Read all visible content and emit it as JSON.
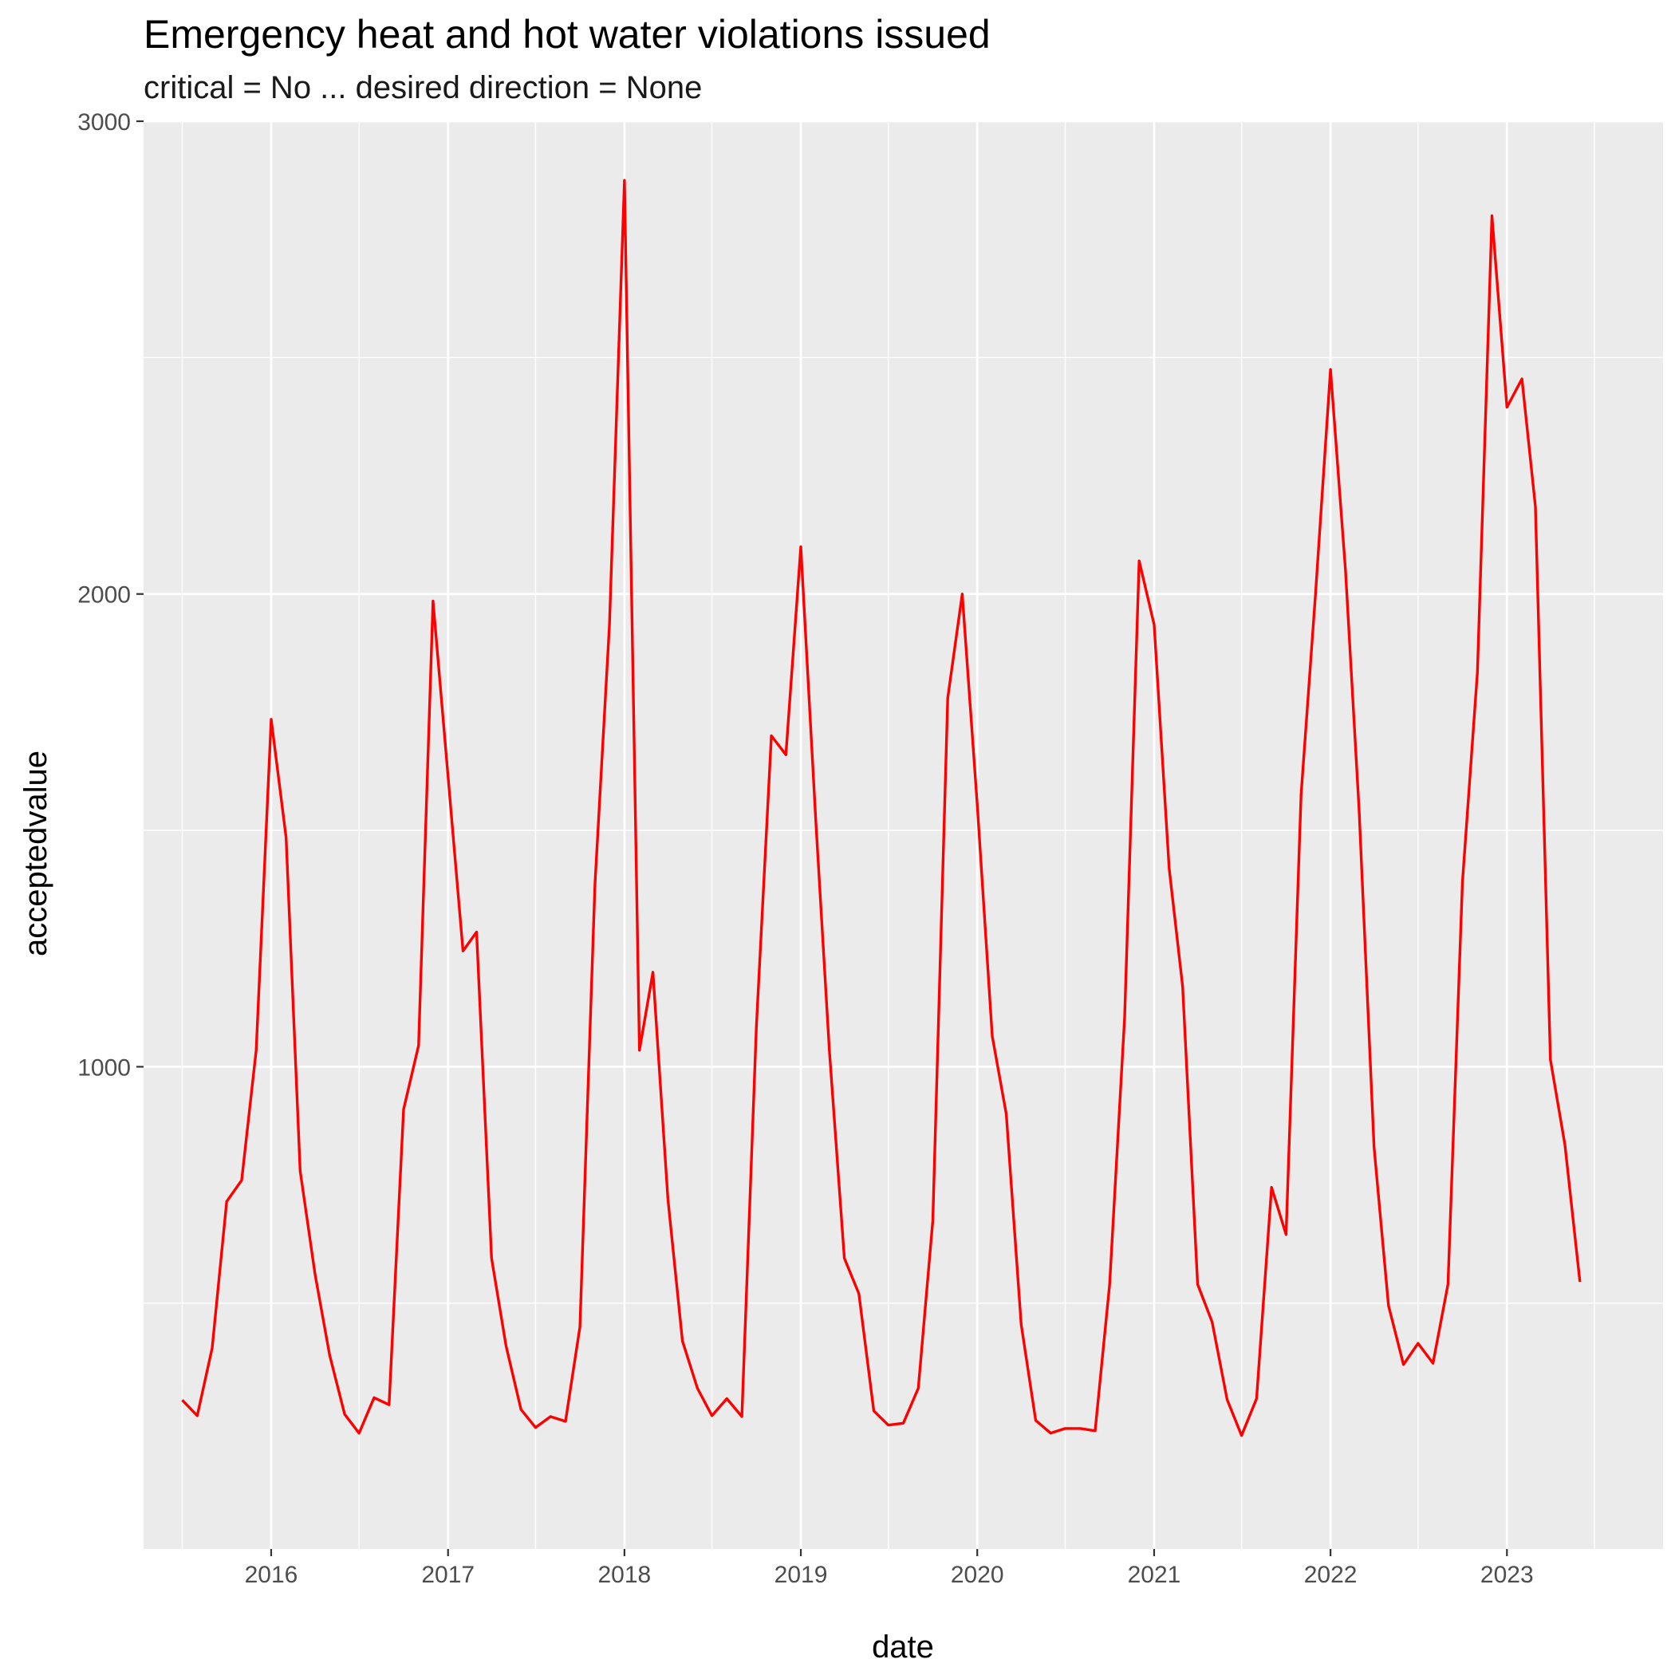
{
  "chart_data": {
    "type": "line",
    "title": "Emergency heat and hot water violations issued",
    "subtitle": "critical = No ... desired direction = None",
    "xlabel": "date",
    "ylabel": "acceptedvalue",
    "xlim": [
      "2015-04-12",
      "2023-11-20"
    ],
    "ylim": [
      -20,
      3000
    ],
    "x_ticks": [
      "2016",
      "2017",
      "2018",
      "2019",
      "2020",
      "2021",
      "2022",
      "2023"
    ],
    "y_ticks": [
      1000,
      2000,
      3000
    ],
    "grid": true,
    "legend": "none",
    "series": [
      {
        "color": "#ff0000",
        "x": [
          "2015-07",
          "2015-08",
          "2015-09",
          "2015-10",
          "2015-11",
          "2015-12",
          "2016-01",
          "2016-02",
          "2016-03",
          "2016-04",
          "2016-05",
          "2016-06",
          "2016-07",
          "2016-08",
          "2016-09",
          "2016-10",
          "2016-11",
          "2016-12",
          "2017-01",
          "2017-02",
          "2017-03",
          "2017-04",
          "2017-05",
          "2017-06",
          "2017-07",
          "2017-08",
          "2017-09",
          "2017-10",
          "2017-11",
          "2017-12",
          "2018-01",
          "2018-02",
          "2018-03",
          "2018-04",
          "2018-05",
          "2018-06",
          "2018-07",
          "2018-08",
          "2018-09",
          "2018-10",
          "2018-11",
          "2018-12",
          "2019-01",
          "2019-02",
          "2019-03",
          "2019-04",
          "2019-05",
          "2019-06",
          "2019-07",
          "2019-08",
          "2019-09",
          "2019-10",
          "2019-11",
          "2019-12",
          "2020-01",
          "2020-02",
          "2020-03",
          "2020-04",
          "2020-05",
          "2020-06",
          "2020-07",
          "2020-08",
          "2020-09",
          "2020-10",
          "2020-11",
          "2020-12",
          "2021-01",
          "2021-02",
          "2021-03",
          "2021-04",
          "2021-05",
          "2021-06",
          "2021-07",
          "2021-08",
          "2021-09",
          "2021-10",
          "2021-11",
          "2021-12",
          "2022-01",
          "2022-02",
          "2022-03",
          "2022-04",
          "2022-05",
          "2022-06",
          "2022-07",
          "2022-08",
          "2022-09",
          "2022-10",
          "2022-11",
          "2022-12",
          "2023-01",
          "2023-02",
          "2023-03",
          "2023-04",
          "2023-05",
          "2023-06"
        ],
        "values": [
          295,
          262,
          405,
          715,
          760,
          1035,
          1735,
          1485,
          780,
          560,
          390,
          265,
          225,
          300,
          285,
          910,
          1045,
          1985,
          1615,
          1245,
          1285,
          595,
          410,
          275,
          237,
          260,
          250,
          450,
          1385,
          1935,
          2875,
          1035,
          1200,
          720,
          420,
          320,
          262,
          298,
          260,
          1085,
          1700,
          1660,
          2100,
          1520,
          1035,
          595,
          520,
          272,
          242,
          246,
          320,
          675,
          1780,
          2000,
          1555,
          1065,
          900,
          455,
          252,
          225,
          235,
          235,
          230,
          540,
          1105,
          2070,
          1935,
          1420,
          1170,
          540,
          460,
          296,
          220,
          298,
          745,
          645,
          1575,
          2000,
          2475,
          2050,
          1545,
          830,
          495,
          370,
          415,
          373,
          540,
          1390,
          1835,
          2800,
          2395,
          2455,
          2185,
          1015,
          835,
          545
        ]
      }
    ]
  }
}
